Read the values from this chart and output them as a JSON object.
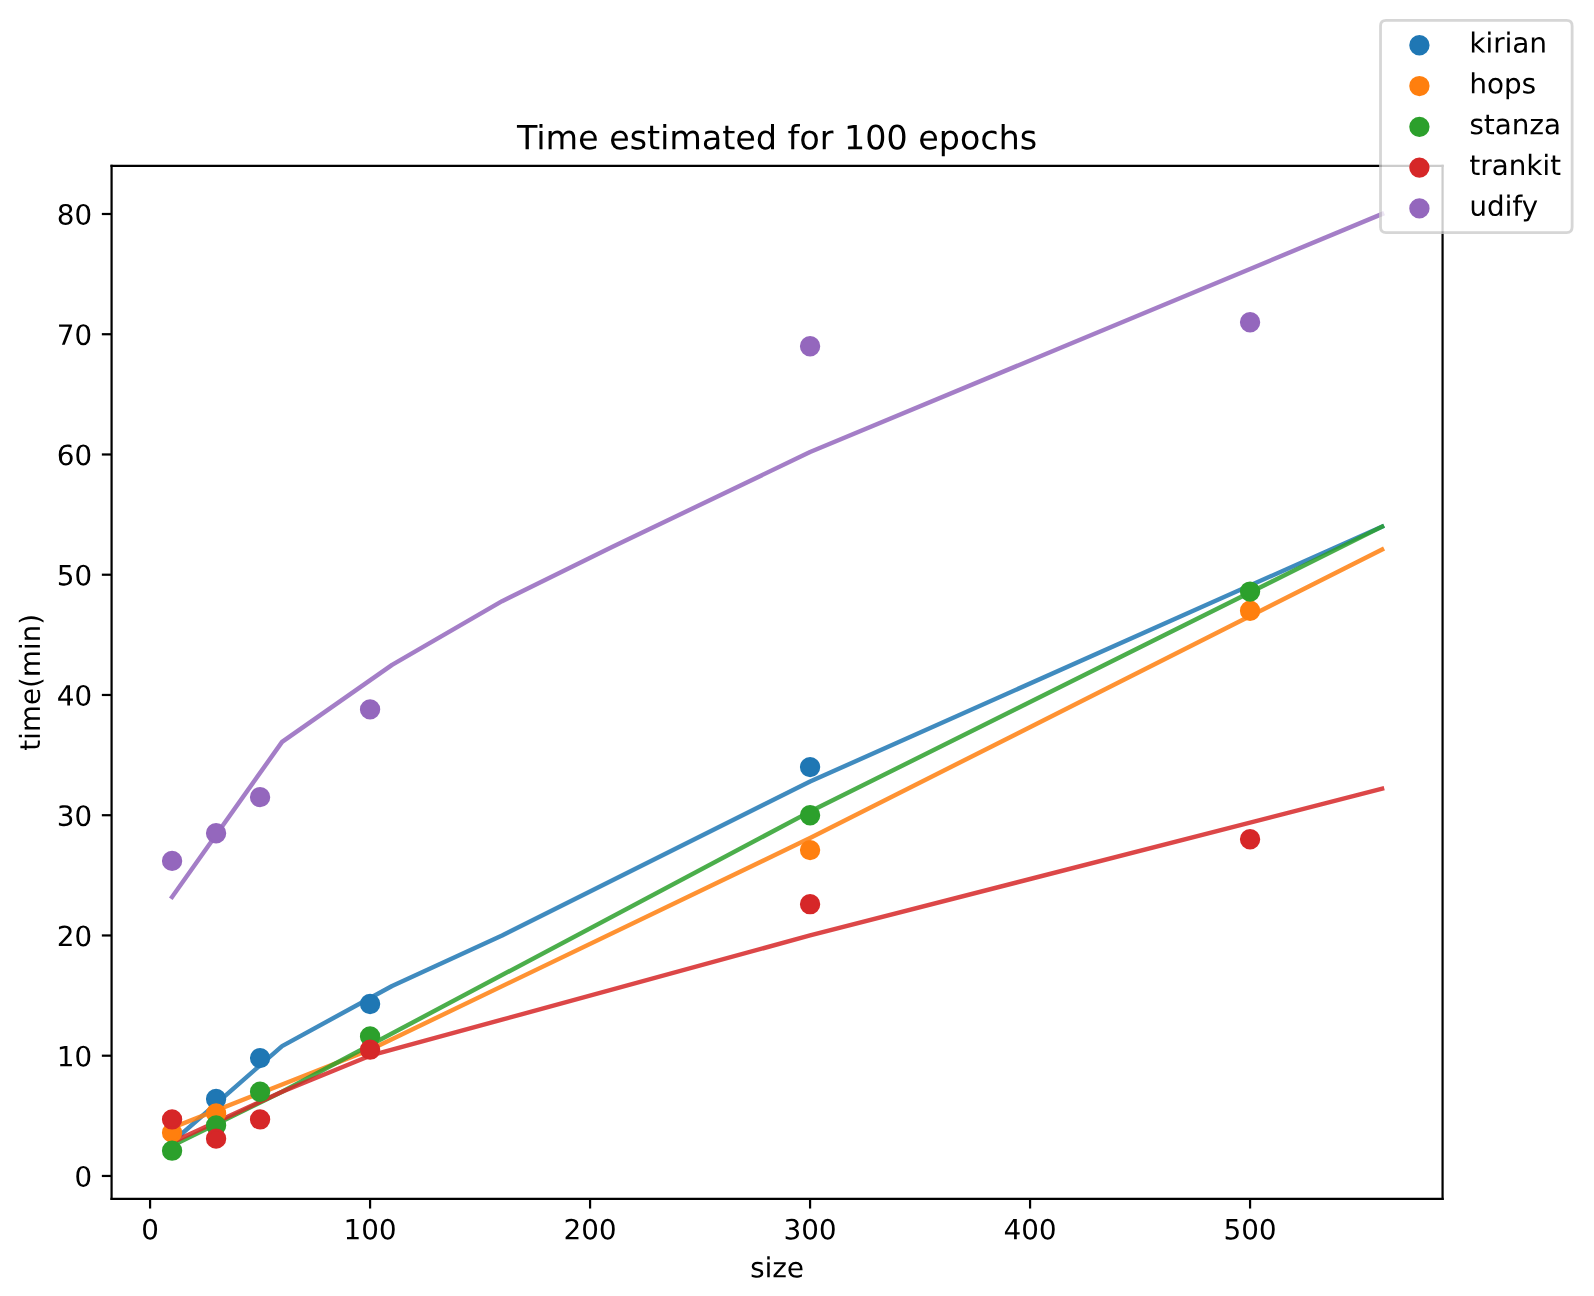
{
  "chart_data": {
    "type": "scatter",
    "title": "Time estimated for 100 epochs",
    "xlabel": "size",
    "ylabel": "time(min)",
    "x": [
      10,
      30,
      50,
      100,
      300,
      500
    ],
    "series": [
      {
        "name": "kirian",
        "color": "#1f77b4",
        "marker": "circle",
        "values": [
          null,
          6.4,
          9.8,
          14.3,
          34.0,
          null
        ]
      },
      {
        "name": "hops",
        "color": "#ff7f0e",
        "marker": "circle",
        "values": [
          3.6,
          5.2,
          null,
          null,
          27.1,
          47.0
        ]
      },
      {
        "name": "stanza",
        "color": "#2ca02c",
        "marker": "circle",
        "values": [
          2.1,
          4.2,
          7.0,
          11.6,
          30.0,
          48.6
        ]
      },
      {
        "name": "trankit",
        "color": "#d62728",
        "marker": "circle",
        "values": [
          4.7,
          3.1,
          4.7,
          10.5,
          22.6,
          28.0
        ]
      },
      {
        "name": "udify",
        "color": "#9467bd",
        "marker": "circle",
        "values": [
          26.2,
          28.5,
          31.5,
          38.8,
          69.0,
          71.0
        ]
      },
      {
        "type": "line",
        "color": "#1f77b4",
        "x": [
          10,
          60,
          110,
          160,
          300,
          560
        ],
        "values": [
          2.8,
          10.8,
          15.8,
          20.0,
          32.8,
          54.0
        ]
      },
      {
        "type": "line",
        "color": "#ff7f0e",
        "x": [
          10,
          100,
          300,
          560
        ],
        "values": [
          4.0,
          10.5,
          28.1,
          52.1
        ]
      },
      {
        "type": "line",
        "color": "#2ca02c",
        "x": [
          10,
          60,
          300,
          560
        ],
        "values": [
          2.5,
          7.0,
          30.3,
          54.0
        ]
      },
      {
        "type": "line",
        "color": "#d62728",
        "x": [
          10,
          60,
          100,
          300,
          560
        ],
        "values": [
          2.8,
          7.0,
          10.0,
          20.0,
          32.2
        ]
      },
      {
        "type": "line",
        "color": "#9467bd",
        "x": [
          10,
          60,
          110,
          160,
          210,
          300,
          560
        ],
        "values": [
          23.2,
          36.1,
          42.5,
          47.8,
          52.3,
          60.2,
          80.0
        ]
      }
    ],
    "xlim": [
      -17.5,
      587.5
    ],
    "xticks": [
      0,
      100,
      200,
      300,
      400,
      500
    ],
    "ylim": [
      -1.9,
      84
    ],
    "yticks": [
      0,
      10,
      20,
      30,
      40,
      50,
      60,
      70,
      80
    ],
    "legend": "top right",
    "grid": false
  }
}
